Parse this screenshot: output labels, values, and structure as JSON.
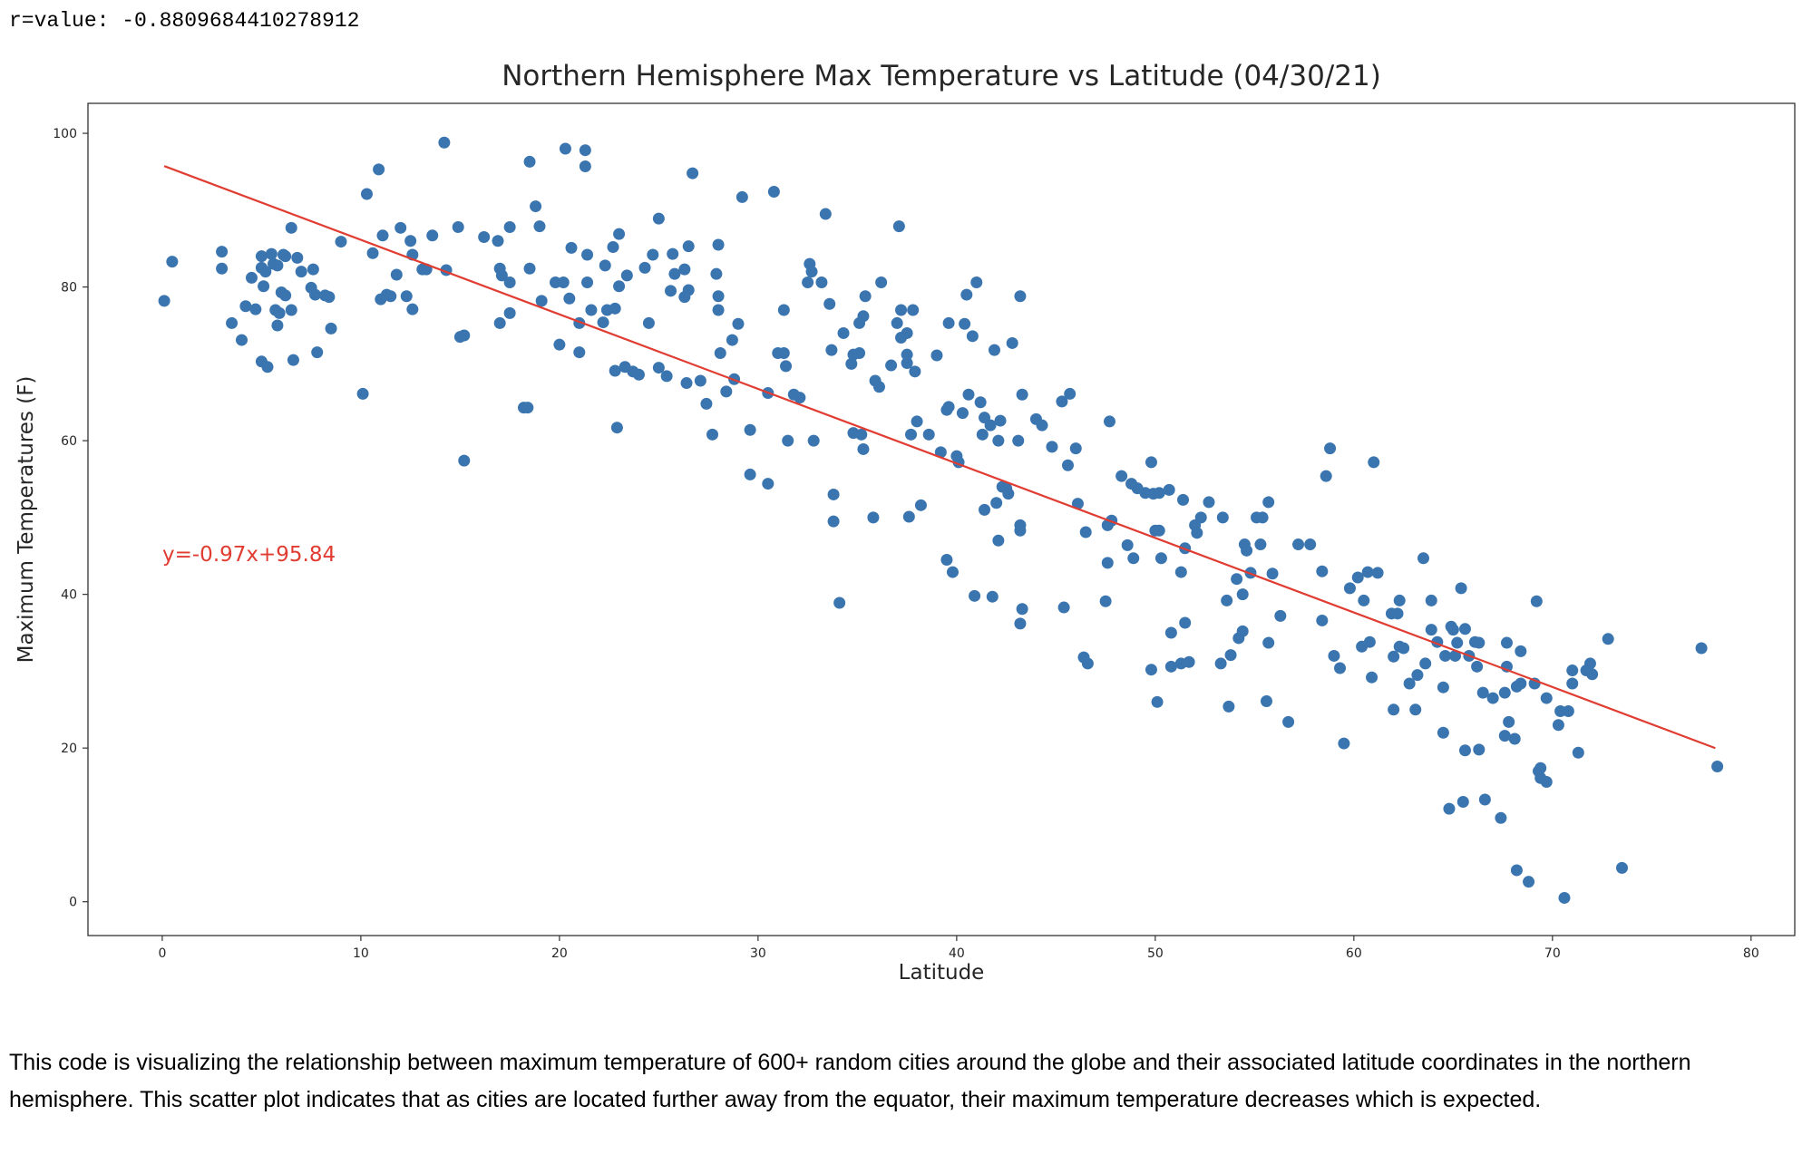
{
  "output_text": "r=value: -0.8809684410278912",
  "description": "This code is visualizing the relationship between maximum temperature of 600+ random cities around the globe and their associated latitude coordinates in the northern hemisphere. This scatter plot indicates that as cities are located further away from the equator, their maximum temperature decreases which is expected.",
  "chart_data": {
    "type": "scatter",
    "title": "Northern Hemisphere Max Temperature vs Latitude (04/30/21)",
    "x_label": "Latitude",
    "y_label": "Maximum Temperatures (F)",
    "color": "#3b75af",
    "xlim": [
      -3.74,
      82.2
    ],
    "ylim": [
      -4.4,
      103.9
    ],
    "xticks": [
      0,
      10,
      20,
      30,
      40,
      50,
      60,
      70,
      80
    ],
    "yticks": [
      0,
      20,
      40,
      60,
      80,
      100
    ],
    "x": [
      0.1,
      0.5,
      3.0,
      3.0,
      3.5,
      4.0,
      4.2,
      4.5,
      4.7,
      5.0,
      5.0,
      5.1,
      5.0,
      5.3,
      5.5,
      5.6,
      5.7,
      5.8,
      5.9,
      6.0,
      6.1,
      6.2,
      6.5,
      6.6,
      6.5,
      6.8,
      7.0,
      7.5,
      7.6,
      7.8,
      7.7,
      8.2,
      8.4,
      8.5,
      9.0,
      5.8,
      5.2,
      6.2,
      10.1,
      10.3,
      10.6,
      10.9,
      11.0,
      11.1,
      11.3,
      11.5,
      11.8,
      12.0,
      12.3,
      12.5,
      12.6,
      12.6,
      13.1,
      13.3,
      13.6,
      14.2,
      14.3,
      14.9,
      15.0,
      15.2,
      15.2,
      16.2,
      16.9,
      17.0,
      17.1,
      17.0,
      17.5,
      17.5,
      17.5,
      18.2,
      18.4,
      18.5,
      18.5,
      18.8,
      19.0,
      19.1,
      19.8,
      20.0,
      20.2,
      20.3,
      20.5,
      20.6,
      21.0,
      21.0,
      21.3,
      21.3,
      21.4,
      21.4,
      21.6,
      22.2,
      22.3,
      22.4,
      22.7,
      22.8,
      22.8,
      22.9,
      23.0,
      23.0,
      23.3,
      23.4,
      23.7,
      24.0,
      24.3,
      24.5,
      24.7,
      25.0,
      25.0,
      25.4,
      25.6,
      25.7,
      25.8,
      26.3,
      26.3,
      26.4,
      26.5,
      26.5,
      26.7,
      27.1,
      27.4,
      27.7,
      27.9,
      28.0,
      28.0,
      28.0,
      28.1,
      28.4,
      28.7,
      28.8,
      29.0,
      29.2,
      29.6,
      29.6,
      30.5,
      30.5,
      30.8,
      31.0,
      31.3,
      31.3,
      31.4,
      31.5,
      31.8,
      32.1,
      32.5,
      32.6,
      32.7,
      32.8,
      33.2,
      33.4,
      33.6,
      33.7,
      33.8,
      33.8,
      34.1,
      34.3,
      34.7,
      34.8,
      34.8,
      35.1,
      35.1,
      35.2,
      35.3,
      35.3,
      35.4,
      35.8,
      35.9,
      36.1,
      36.2,
      36.7,
      37.0,
      37.1,
      37.2,
      37.2,
      37.5,
      37.5,
      37.5,
      37.6,
      37.8,
      37.9,
      37.7,
      38.0,
      38.2,
      38.6,
      39.0,
      39.2,
      39.5,
      39.6,
      39.6,
      39.5,
      39.8,
      40.0,
      40.1,
      40.3,
      40.4,
      40.5,
      40.6,
      40.8,
      40.9,
      41.0,
      41.2,
      41.3,
      41.4,
      41.4,
      41.7,
      41.8,
      41.9,
      42.0,
      42.1,
      42.1,
      42.2,
      42.3,
      42.5,
      42.6,
      42.8,
      43.1,
      43.2,
      43.2,
      43.2,
      43.3,
      43.2,
      43.3,
      44.0,
      44.3,
      44.8,
      45.3,
      45.4,
      45.7,
      45.6,
      46.0,
      46.1,
      46.4,
      46.5,
      46.6,
      47.5,
      47.6,
      47.6,
      47.7,
      47.8,
      48.3,
      48.6,
      48.8,
      48.9,
      49.1,
      49.5,
      49.8,
      49.8,
      49.9,
      50.0,
      50.1,
      50.2,
      50.2,
      50.3,
      50.7,
      50.8,
      50.8,
      51.3,
      51.3,
      51.4,
      51.5,
      51.7,
      51.5,
      52.0,
      52.1,
      52.3,
      52.7,
      53.3,
      53.4,
      53.6,
      53.7,
      53.8,
      54.1,
      54.2,
      54.4,
      54.4,
      54.5,
      54.6,
      54.8,
      55.1,
      55.3,
      55.4,
      55.6,
      55.7,
      55.7,
      55.9,
      56.3,
      56.7,
      57.2,
      57.8,
      58.4,
      58.4,
      58.6,
      58.8,
      59.0,
      59.3,
      59.5,
      59.8,
      60.2,
      60.4,
      60.5,
      60.7,
      60.8,
      60.9,
      61.0,
      61.2,
      61.9,
      62.0,
      62.0,
      62.2,
      62.3,
      62.3,
      62.5,
      62.8,
      63.1,
      63.2,
      63.5,
      63.6,
      63.9,
      63.9,
      64.2,
      64.5,
      64.5,
      64.6,
      64.8,
      64.9,
      65.0,
      65.1,
      65.2,
      65.4,
      65.5,
      65.6,
      65.6,
      65.8,
      66.1,
      66.2,
      66.3,
      66.3,
      66.5,
      66.6,
      67.0,
      67.4,
      67.6,
      67.6,
      67.7,
      67.7,
      67.8,
      68.1,
      68.2,
      68.2,
      68.4,
      68.4,
      68.8,
      69.1,
      69.2,
      69.3,
      69.4,
      69.4,
      69.7,
      69.7,
      70.3,
      70.4,
      70.6,
      70.8,
      71.0,
      71.0,
      71.3,
      71.7,
      71.9,
      72.0,
      72.8,
      73.5,
      77.5,
      78.3
    ],
    "values": [
      78.2,
      83.3,
      84.6,
      82.4,
      75.3,
      73.1,
      77.5,
      81.2,
      77.1,
      84.0,
      82.5,
      80.1,
      70.3,
      69.6,
      84.3,
      83.0,
      77.0,
      75.0,
      76.6,
      79.3,
      84.2,
      78.9,
      77.0,
      70.5,
      87.7,
      83.8,
      82.0,
      79.9,
      82.3,
      71.5,
      79.0,
      78.9,
      78.7,
      74.6,
      85.9,
      82.8,
      82.0,
      84.0,
      66.1,
      92.1,
      84.4,
      95.3,
      78.4,
      86.7,
      79.0,
      78.8,
      81.6,
      87.7,
      78.8,
      86.0,
      77.1,
      84.2,
      82.3,
      82.3,
      86.7,
      98.8,
      82.2,
      87.8,
      73.5,
      73.7,
      57.4,
      86.5,
      86.0,
      82.4,
      81.5,
      75.3,
      87.8,
      80.6,
      76.6,
      64.3,
      64.3,
      96.3,
      82.4,
      90.5,
      87.9,
      78.2,
      80.6,
      72.5,
      80.6,
      98.0,
      78.5,
      85.1,
      75.3,
      71.5,
      97.8,
      95.7,
      84.2,
      80.6,
      77.0,
      75.4,
      82.8,
      77.0,
      85.2,
      77.2,
      69.1,
      61.7,
      86.9,
      80.1,
      69.6,
      81.5,
      69.0,
      68.6,
      82.5,
      75.3,
      84.2,
      88.9,
      69.5,
      68.4,
      79.5,
      84.3,
      81.7,
      78.7,
      82.3,
      67.5,
      79.6,
      85.3,
      94.8,
      67.8,
      64.8,
      60.8,
      81.7,
      85.5,
      78.8,
      77.0,
      71.4,
      66.4,
      73.1,
      68.0,
      75.2,
      91.7,
      61.4,
      55.6,
      66.2,
      54.4,
      92.4,
      71.4,
      71.4,
      77.0,
      69.7,
      60.0,
      66.0,
      65.6,
      80.6,
      83.0,
      82.0,
      60.0,
      80.6,
      89.5,
      77.8,
      71.8,
      53.0,
      49.5,
      38.9,
      74.0,
      70.0,
      71.2,
      61.0,
      71.4,
      75.3,
      60.8,
      76.2,
      58.9,
      78.8,
      50.0,
      67.8,
      67.0,
      80.6,
      69.8,
      75.3,
      87.9,
      77.0,
      73.4,
      74.0,
      70.1,
      71.2,
      50.1,
      77.0,
      69.0,
      60.8,
      62.5,
      51.6,
      60.8,
      71.1,
      58.5,
      64.0,
      75.3,
      64.4,
      44.5,
      42.9,
      58.0,
      57.2,
      63.6,
      75.2,
      79.0,
      66.0,
      73.6,
      39.8,
      80.6,
      65.0,
      60.8,
      63.0,
      51.0,
      62.0,
      39.7,
      71.8,
      51.9,
      47.0,
      60.0,
      62.6,
      54.0,
      53.8,
      53.1,
      72.7,
      60.0,
      78.8,
      49.0,
      48.3,
      38.1,
      36.2,
      66.0,
      62.8,
      62.0,
      59.2,
      65.1,
      38.3,
      66.1,
      56.8,
      59.0,
      51.8,
      31.8,
      48.1,
      31.0,
      39.1,
      44.1,
      49.0,
      62.5,
      49.6,
      55.4,
      46.4,
      54.4,
      44.7,
      53.8,
      53.2,
      57.2,
      30.2,
      53.1,
      48.3,
      26.0,
      48.3,
      53.2,
      44.7,
      53.6,
      35.0,
      30.6,
      42.9,
      31.0,
      52.3,
      36.3,
      31.2,
      46.0,
      49.0,
      48.0,
      50.0,
      52.0,
      31.0,
      50.0,
      39.2,
      25.4,
      32.1,
      42.0,
      34.3,
      40.0,
      35.2,
      46.5,
      45.7,
      42.8,
      50.0,
      46.5,
      50.0,
      26.1,
      52.0,
      33.7,
      42.7,
      37.2,
      23.4,
      46.5,
      46.5,
      43.0,
      36.6,
      55.4,
      59.0,
      32.0,
      30.4,
      20.6,
      40.8,
      42.2,
      33.2,
      39.2,
      42.9,
      33.8,
      29.2,
      57.2,
      42.8,
      37.5,
      25.0,
      31.9,
      37.5,
      39.2,
      33.2,
      33.0,
      28.4,
      25.0,
      29.5,
      44.7,
      31.0,
      39.2,
      35.4,
      33.8,
      27.9,
      22.0,
      32.0,
      12.1,
      35.8,
      35.4,
      32.0,
      33.7,
      40.8,
      13.0,
      35.5,
      19.7,
      32.0,
      33.8,
      30.6,
      33.7,
      19.8,
      27.2,
      13.3,
      26.5,
      10.9,
      27.2,
      21.6,
      30.6,
      33.7,
      23.4,
      21.2,
      4.1,
      28.0,
      32.6,
      28.4,
      2.6,
      28.4,
      39.1,
      17.0,
      16.1,
      17.4,
      15.6,
      26.5,
      23.0,
      24.8,
      0.5,
      24.8,
      28.4,
      30.1,
      19.4,
      30.1,
      31.0,
      29.6,
      34.2,
      4.4,
      33.0,
      17.6
    ],
    "fit_line": {
      "label": "y=-0.97x+95.84",
      "color": "#e03c31",
      "x": [
        0.1,
        78.2
      ],
      "values": [
        95.74,
        19.99
      ]
    }
  }
}
